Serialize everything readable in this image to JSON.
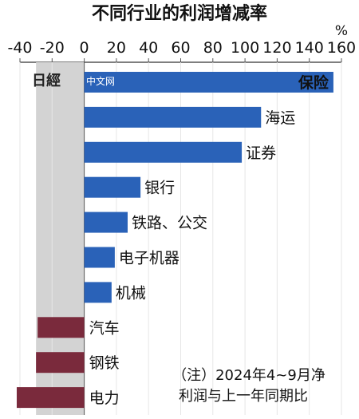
{
  "watermark": {
    "logo": "日經",
    "text": "中文网"
  },
  "chart_data": {
    "type": "bar",
    "orientation": "horizontal",
    "title": "不同行业的利润增减率",
    "unit": "%",
    "xlim": [
      -40,
      160
    ],
    "ticks": [
      -40,
      -20,
      0,
      20,
      40,
      60,
      80,
      100,
      120,
      140,
      160
    ],
    "categories": [
      "保险",
      "海运",
      "证券",
      "银行",
      "铁路、公交",
      "电子机器",
      "机械",
      "汽车",
      "钢铁",
      "电力"
    ],
    "values": [
      155,
      110,
      98,
      35,
      27,
      19,
      17,
      -29,
      -30,
      -42
    ],
    "note_lines": [
      "（注）2024年4~9月净",
      "利润与上一年同期比"
    ],
    "colors": {
      "positive": "#2a62b8",
      "negative": "#7a2a3c",
      "shade": "#d3d3d3",
      "axis": "#555555"
    }
  }
}
